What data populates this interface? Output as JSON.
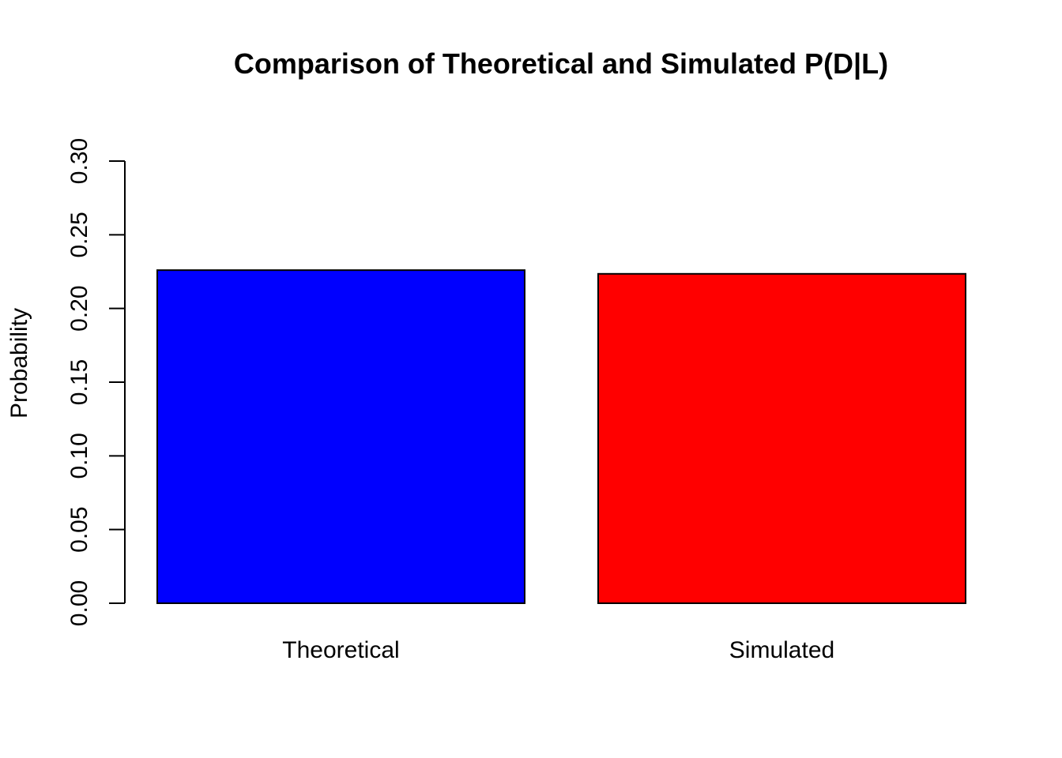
{
  "chart_data": {
    "type": "bar",
    "title": "Comparison of Theoretical and Simulated P(D|L)",
    "xlabel": "",
    "ylabel": "Probability",
    "categories": [
      "Theoretical",
      "Simulated"
    ],
    "values": [
      0.226,
      0.2235
    ],
    "colors": [
      "#0000ff",
      "#ff0000"
    ],
    "ylim": [
      0,
      0.3
    ],
    "yticks": [
      0.0,
      0.05,
      0.1,
      0.15,
      0.2,
      0.25,
      0.3
    ],
    "ytick_labels": [
      "0.00",
      "0.05",
      "0.10",
      "0.15",
      "0.20",
      "0.25",
      "0.30"
    ],
    "grid": false,
    "legend": "none"
  }
}
